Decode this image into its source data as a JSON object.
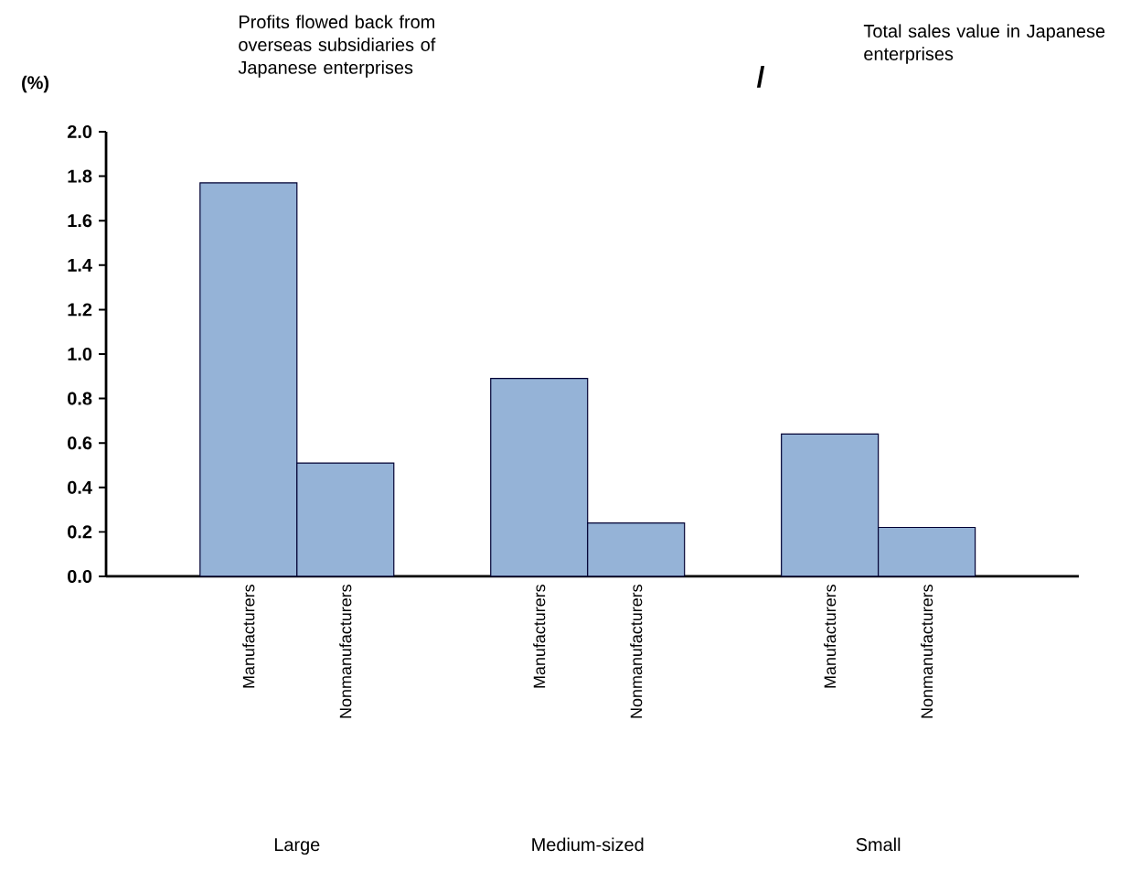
{
  "chart_data": {
    "type": "bar",
    "title": "Profits flowed back from overseas subsidiaries of Japanese enterprises",
    "subtitle": "Total sales value in Japanese enterprises",
    "ylabel": "(%)",
    "categories": [
      "Manufacturers",
      "Nonmanufacturers",
      null,
      "Manufacturers",
      "Nonmanufacturers",
      null,
      "Manufacturers",
      "Nonmanufacturers"
    ],
    "values": [
      1.77,
      0.51,
      null,
      0.89,
      0.24,
      null,
      0.64,
      0.22
    ],
    "color": "#95b3d7",
    "ylim": [
      0,
      2.0
    ],
    "yticks": [
      {
        "value": 0,
        "label": "0.0"
      },
      0.2,
      0.4,
      0.6,
      0.8,
      {
        "value": 1.0,
        "label": "1.0"
      },
      1.2,
      1.4,
      1.6,
      1.8,
      {
        "value": 2.0,
        "label": "2.0"
      }
    ],
    "annotations": [
      "/",
      "Large",
      "Medium-sized",
      "Small"
    ]
  }
}
